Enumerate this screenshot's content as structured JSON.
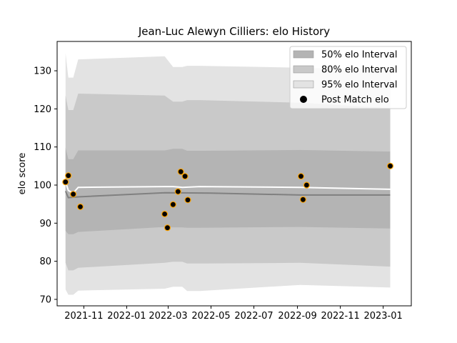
{
  "chart_data": {
    "type": "line",
    "title": "Jean-Luc Alewyn Cilliers: elo History",
    "xlabel": "",
    "ylabel": "elo score",
    "ylim": [
      68.3,
      137.7
    ],
    "xlim": [
      "2021-09-24",
      "2023-02-10"
    ],
    "grid": false,
    "legend_position": "top-right",
    "x_ticks": [
      "2021-11",
      "2022-01",
      "2022-03",
      "2022-05",
      "2022-07",
      "2022-09",
      "2022-11",
      "2023-01"
    ],
    "y_ticks": [
      70,
      80,
      90,
      100,
      110,
      120,
      130
    ],
    "legend": [
      {
        "label": "50% elo Interval",
        "kind": "patch",
        "color": "#b4b4b4"
      },
      {
        "label": "80% elo Interval",
        "kind": "patch",
        "color": "#c9c9c9"
      },
      {
        "label": "95% elo Interval",
        "kind": "patch",
        "color": "#e3e3e3"
      },
      {
        "label": "Post Match elo",
        "kind": "marker",
        "color": "#000000"
      }
    ],
    "colors": {
      "band95": "#e3e3e3",
      "band80": "#c9c9c9",
      "band50": "#b4b4b4",
      "mean_line": "#ffffff",
      "median_line": "#808080",
      "marker_face": "#000000",
      "marker_edge": "#ffa500"
    },
    "bands": {
      "x": [
        "2021-10-06",
        "2021-10-10",
        "2021-10-17",
        "2021-10-24",
        "2022-02-24",
        "2022-03-08",
        "2022-03-21",
        "2022-03-28",
        "2022-04-15",
        "2022-09-05",
        "2023-01-11"
      ],
      "band95": {
        "low": [
          72.6,
          71.2,
          71.2,
          72.3,
          72.8,
          73.3,
          73.3,
          72.2,
          72.2,
          73.8,
          73.1
        ],
        "high": [
          134.6,
          128.2,
          128.2,
          133.0,
          133.8,
          131.0,
          131.0,
          131.3,
          131.3,
          130.8,
          130.1
        ]
      },
      "band80": {
        "low": [
          79.6,
          77.6,
          77.6,
          78.3,
          79.6,
          79.9,
          79.9,
          79.4,
          79.4,
          79.6,
          78.6
        ],
        "high": [
          123.5,
          119.7,
          119.7,
          124.0,
          123.5,
          121.9,
          121.9,
          122.3,
          122.3,
          121.6,
          120.2
        ]
      },
      "band50": {
        "low": [
          88.0,
          87.1,
          87.1,
          87.7,
          89.0,
          88.9,
          88.9,
          88.8,
          88.8,
          89.0,
          88.6
        ],
        "high": [
          109.8,
          106.8,
          106.8,
          109.1,
          109.1,
          109.5,
          109.5,
          109.0,
          109.0,
          109.2,
          108.8
        ]
      }
    },
    "series": [
      {
        "role": "mean",
        "x": [
          "2021-10-06",
          "2021-10-10",
          "2021-10-17",
          "2021-10-24",
          "2022-02-24",
          "2022-03-08",
          "2022-03-21",
          "2022-04-15",
          "2022-09-05",
          "2023-01-11"
        ],
        "values": [
          100.8,
          98.6,
          97.9,
          99.4,
          99.6,
          99.6,
          99.4,
          99.6,
          99.4,
          98.9
        ]
      },
      {
        "role": "median",
        "x": [
          "2021-10-06",
          "2021-10-10",
          "2021-10-24",
          "2022-02-24",
          "2022-05-01",
          "2022-09-05",
          "2023-01-11"
        ],
        "values": [
          98.4,
          96.7,
          96.9,
          98.0,
          97.9,
          97.4,
          97.4
        ]
      },
      {
        "role": "points",
        "name": "Post Match elo",
        "x": [
          "2021-10-06",
          "2021-10-10",
          "2021-10-17",
          "2021-10-27",
          "2022-02-24",
          "2022-02-28",
          "2022-03-08",
          "2022-03-15",
          "2022-03-19",
          "2022-03-25",
          "2022-03-29",
          "2022-09-06",
          "2022-09-09",
          "2022-09-14",
          "2023-01-11"
        ],
        "values": [
          100.8,
          102.5,
          97.6,
          94.3,
          92.4,
          88.8,
          94.9,
          98.3,
          103.5,
          102.3,
          96.1,
          102.3,
          96.2,
          100.0,
          105.0
        ]
      }
    ]
  }
}
